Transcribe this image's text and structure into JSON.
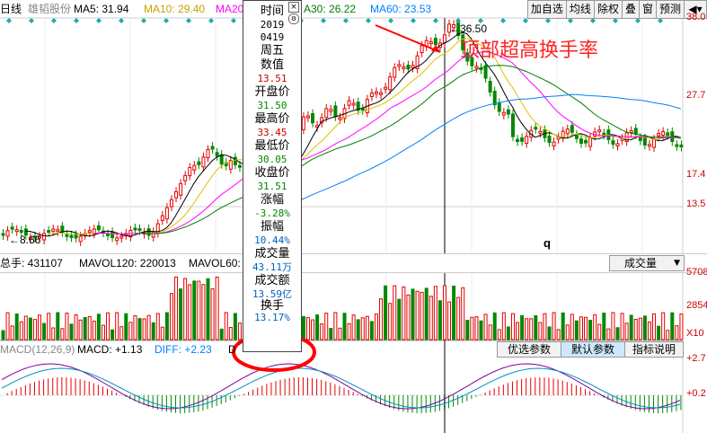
{
  "header": {
    "period_label": "日线",
    "stock_name": "雄韬股份",
    "ma5": "MA5: 31.94",
    "ma10": "MA10: 29.40",
    "ma20": "MA20",
    "ma30": "A30: 26.22",
    "ma60": "MA60: 23.53"
  },
  "toolbar": [
    "加自选",
    "均线",
    "除权",
    "叠",
    "窗",
    "预测"
  ],
  "price_axis": [
    "38.0",
    "27.7",
    "17.4",
    "13.5"
  ],
  "price_marks": {
    "high": "36.50",
    "low": "8.66"
  },
  "annotation": "顶部超高换手率",
  "cursor_marker": "q",
  "tooltip": {
    "time_label": "时间",
    "year": "2019",
    "date": "0419",
    "weekday": "周五",
    "value_label": "数值",
    "value": "13.51",
    "open_label": "开盘价",
    "open": "31.50",
    "high_label": "最高价",
    "high": "33.45",
    "low_label": "最低价",
    "low": "30.05",
    "close_label": "收盘价",
    "close": "31.51",
    "change_label": "涨幅",
    "change": "-3.28%",
    "amplitude_label": "振幅",
    "amplitude": "10.44%",
    "volume_label": "成交量",
    "volume": "43.11万",
    "amount_label": "成交额",
    "amount": "13.59亿",
    "turnover_label": "换手",
    "turnover": "13.17%"
  },
  "volume_panel": {
    "total": "总手: 431107",
    "mavol120": "MAVOL120: 220013",
    "mavol60": "MAVOL60:",
    "dropdown": "成交量",
    "axis": [
      "5708",
      "2854",
      "X10"
    ]
  },
  "macd_panel": {
    "params": "MACD(12,26,9)",
    "macd": "MACD: +1.13",
    "diff": "DIFF: +2.23",
    "d_label": "D",
    "buttons": [
      "优选参数",
      "默认参数",
      "指标说明"
    ],
    "axis": [
      "+2.7",
      "+0.2"
    ]
  },
  "colors": {
    "up": "#e60000",
    "down": "#008800",
    "ma5": "#000000",
    "ma10": "#e0c000",
    "ma20": "#ff00ff",
    "ma30": "#008000",
    "ma60": "#0080ff",
    "circle": "#ff0000",
    "annotation": "#ff0000"
  },
  "chart_data": {
    "type": "candlestick",
    "price_range": [
      8.66,
      38.0
    ],
    "note_high": 36.5,
    "note_low": 8.66
  }
}
